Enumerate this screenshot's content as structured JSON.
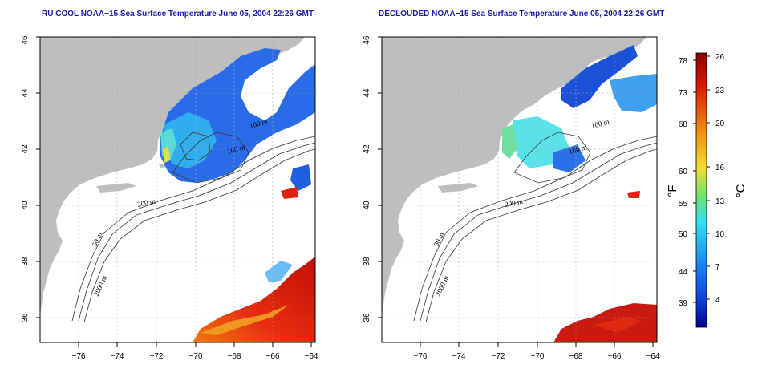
{
  "panels": [
    {
      "title": "RU COOL NOAA−15 Sea Surface Temperature June 05, 2004 22:26 GMT",
      "lat_ticks": [
        "46",
        "44",
        "42",
        "40",
        "38",
        "36"
      ],
      "lon_ticks": [
        "−76",
        "−74",
        "−72",
        "−70",
        "−68",
        "−66",
        "−64"
      ],
      "contour_labels": [
        "100 m",
        "100 m",
        "200 m",
        "50 m",
        "2000 m"
      ]
    },
    {
      "title": "DECLOUDED NOAA−15 Sea Surface Temperature June 05, 2004 22:26 GMT",
      "lat_ticks": [
        "46",
        "44",
        "42",
        "40",
        "38",
        "36"
      ],
      "lon_ticks": [
        "−76",
        "−74",
        "−72",
        "−70",
        "−68",
        "−66",
        "−64"
      ],
      "contour_labels": [
        "100 m",
        "100 m",
        "200 m",
        "50 m",
        "2000 m"
      ]
    }
  ],
  "colorbar": {
    "fahrenheit_label": "°F",
    "celsius_label": "°C",
    "fahrenheit_ticks": [
      "78",
      "73",
      "68",
      "60",
      "55",
      "50",
      "44",
      "39"
    ],
    "celsius_ticks": [
      "26",
      "23",
      "20",
      "16",
      "13",
      "10",
      "7",
      "4"
    ],
    "colors": {
      "warm": "#8b0000",
      "red": "#e02010",
      "orange": "#f08a10",
      "yellow": "#f0e030",
      "green": "#70e070",
      "cyan": "#30e0f0",
      "blue": "#1060e0",
      "deep_blue": "#000090"
    }
  },
  "map_colors": {
    "land": "#bebebe",
    "ocean": "#ffffff",
    "grid": "#aaaaaa"
  }
}
